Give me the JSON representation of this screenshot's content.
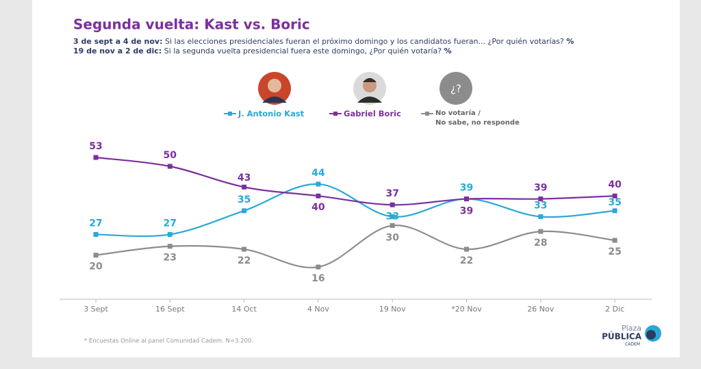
{
  "chart_data": {
    "type": "line",
    "title": "Segunda vuelta: Kast vs. Boric",
    "subtitle_lines": [
      {
        "period": "3 de sept a 4 de nov:",
        "question": "Si las elecciones presidenciales fueran el próximo domingo y los candidatos fueran... ¿Por quién votarías?",
        "unit": "%"
      },
      {
        "period": "19 de nov a 2 de dic:",
        "question": "Si la segunda vuelta presidencial fuera este domingo, ¿Por quién votaría?",
        "unit": "%"
      }
    ],
    "unknown_icon": "¿?",
    "categories": [
      "3 Sept",
      "16 Sept",
      "14 Oct",
      "4 Nov",
      "19 Nov",
      "*20 Nov",
      "26 Nov",
      "2 Dic"
    ],
    "series": [
      {
        "name": "J. Antonio Kast",
        "color": "#2aa8d8",
        "values": [
          27,
          27,
          35,
          44,
          33,
          39,
          33,
          35
        ]
      },
      {
        "name": "Gabriel Boric",
        "color": "#7b2f9e",
        "values": [
          53,
          50,
          43,
          40,
          37,
          39,
          39,
          40
        ]
      },
      {
        "name": "No votaría /\nNo sabe, no responde",
        "color": "#8c8c8c",
        "values": [
          20,
          23,
          22,
          16,
          30,
          22,
          28,
          25
        ]
      }
    ],
    "footnote": "* Encuestas Online al panel Comunidad Cadem. N=3.200.",
    "logo": {
      "top": "Plaza",
      "main": "PÚBLICA",
      "sub": "CADEM"
    }
  }
}
